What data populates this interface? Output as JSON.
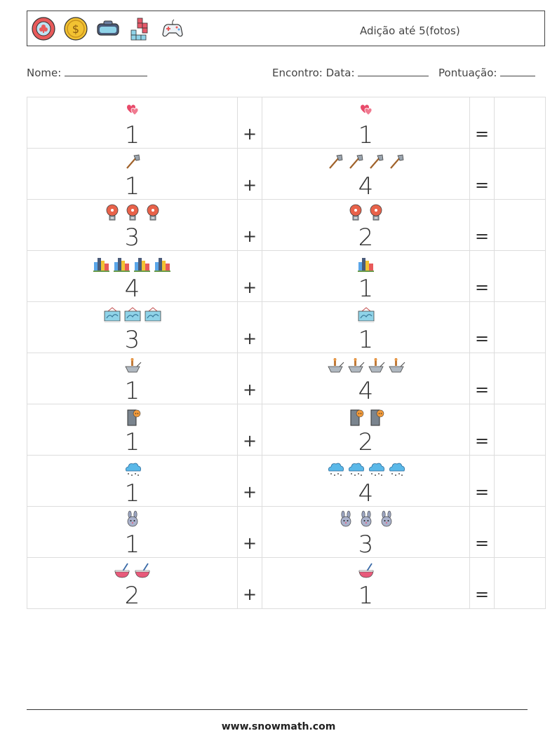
{
  "header": {
    "title": "Adição até 5(fotos)",
    "icons": [
      "poker-chip-icon",
      "coin-icon",
      "vr-headset-icon",
      "tetris-blocks-icon",
      "gamepad-icon"
    ]
  },
  "info": {
    "name_label": "Nome:",
    "meeting_label": "Encontro: Data:",
    "score_label": "Pontuação:"
  },
  "symbols": {
    "plus": "+",
    "equals": "="
  },
  "rows": [
    {
      "a": 1,
      "a_icon": "hearts",
      "b": 1,
      "b_icon": "hearts"
    },
    {
      "a": 1,
      "a_icon": "axe",
      "b": 4,
      "b_icon": "axe"
    },
    {
      "a": 3,
      "a_icon": "alarm-bell",
      "b": 2,
      "b_icon": "alarm-bell"
    },
    {
      "a": 4,
      "a_icon": "city",
      "b": 1,
      "b_icon": "city"
    },
    {
      "a": 3,
      "a_icon": "picture",
      "b": 1,
      "b_icon": "picture"
    },
    {
      "a": 1,
      "a_icon": "mortar",
      "b": 4,
      "b_icon": "mortar"
    },
    {
      "a": 1,
      "a_icon": "door",
      "b": 2,
      "b_icon": "door"
    },
    {
      "a": 1,
      "a_icon": "snow-cloud",
      "b": 4,
      "b_icon": "snow-cloud"
    },
    {
      "a": 1,
      "a_icon": "rabbit",
      "b": 3,
      "b_icon": "rabbit"
    },
    {
      "a": 2,
      "a_icon": "bowl",
      "b": 1,
      "b_icon": "bowl"
    }
  ],
  "footer": {
    "url": "www.snowmath.com"
  }
}
